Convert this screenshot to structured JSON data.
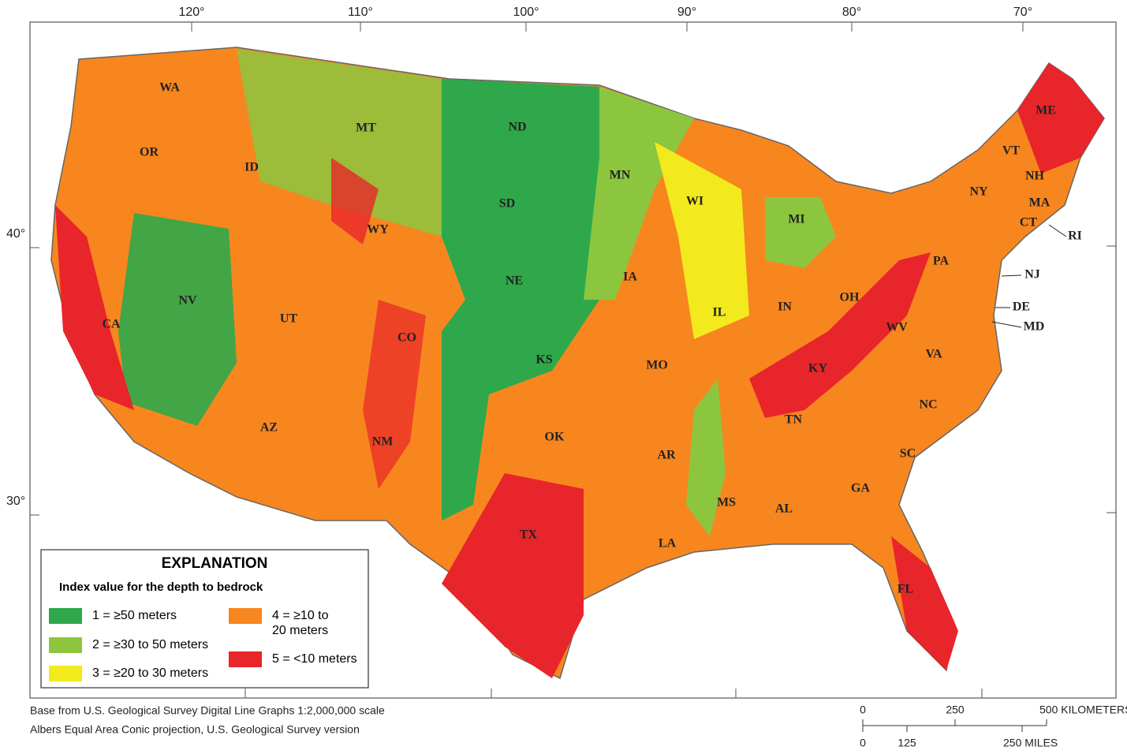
{
  "graticule": {
    "longitudes": [
      "120°",
      "110°",
      "100°",
      "90°",
      "80°",
      "70°"
    ],
    "latitudes": [
      "40°",
      "30°"
    ]
  },
  "states": [
    "WA",
    "OR",
    "CA",
    "ID",
    "NV",
    "MT",
    "WY",
    "UT",
    "AZ",
    "CO",
    "NM",
    "ND",
    "SD",
    "NE",
    "KS",
    "OK",
    "TX",
    "MN",
    "IA",
    "MO",
    "AR",
    "LA",
    "WI",
    "IL",
    "MI",
    "IN",
    "OH",
    "KY",
    "TN",
    "MS",
    "AL",
    "GA",
    "FL",
    "SC",
    "NC",
    "VA",
    "WV",
    "PA",
    "NY",
    "VT",
    "NH",
    "ME",
    "MA",
    "CT",
    "RI",
    "NJ",
    "DE",
    "MD"
  ],
  "legend": {
    "title": "EXPLANATION",
    "subtitle": "Index value for the depth to bedrock",
    "items": [
      {
        "lines": [
          "1 = ≥50 meters"
        ],
        "color": "#2ea84a"
      },
      {
        "lines": [
          "2 = ≥30 to 50 meters"
        ],
        "color": "#8cc63f"
      },
      {
        "lines": [
          "3 = ≥20 to 30 meters"
        ],
        "color": "#f2ea1d"
      },
      {
        "lines": [
          "4 = ≥10 to",
          "20 meters"
        ],
        "color": "#f7861f"
      },
      {
        "lines": [
          "5 = <10 meters"
        ],
        "color": "#e8252a"
      }
    ]
  },
  "credits": [
    "Base from U.S. Geological Survey Digital Line Graphs 1:2,000,000 scale",
    "Albers Equal Area Conic projection, U.S. Geological Survey version"
  ],
  "scale_bar": {
    "km_labels": [
      "0",
      "250",
      "500 KILOMETERS"
    ],
    "mile_labels": [
      "0",
      "125",
      "250 MILES"
    ]
  }
}
